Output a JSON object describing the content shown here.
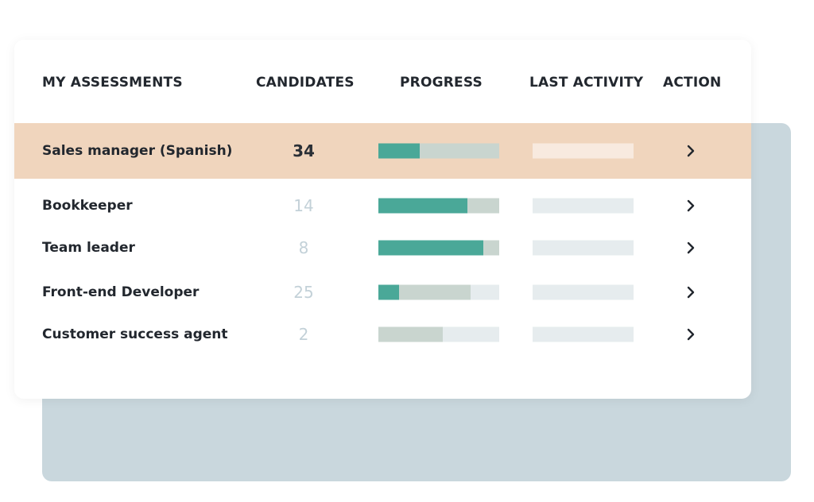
{
  "table": {
    "columns": [
      "MY ASSESSMENTS",
      "CANDIDATES",
      "PROGRESS",
      "LAST ACTIVITY",
      "ACTION"
    ],
    "rows": [
      {
        "title": "Sales manager (Spanish)",
        "candidates": 34,
        "progress": {
          "completed": 34,
          "in_progress": 66
        }
      },
      {
        "title": "Bookkeeper",
        "candidates": 14,
        "progress": {
          "completed": 74,
          "in_progress": 26
        }
      },
      {
        "title": "Team leader",
        "candidates": 8,
        "progress": {
          "completed": 87,
          "in_progress": 13
        }
      },
      {
        "title": "Front-end Developer",
        "candidates": 25,
        "progress": {
          "completed": 17,
          "in_progress": 59
        }
      },
      {
        "title": "Customer success agent",
        "candidates": 2,
        "progress": {
          "completed": 0,
          "in_progress": 53
        }
      }
    ]
  }
}
